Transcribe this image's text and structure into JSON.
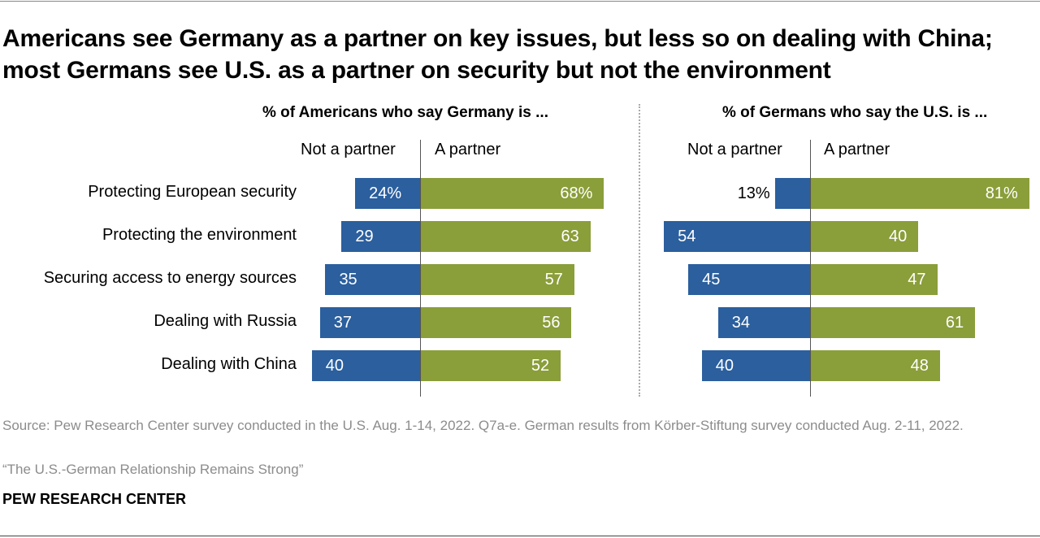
{
  "title": "Americans see Germany as a partner on key issues, but less so on dealing with China; most Germans see U.S. as a partner on security but not the environment",
  "colors": {
    "not_partner": "#2b5f9e",
    "partner": "#8a9e3a"
  },
  "chart_data": [
    {
      "type": "bar",
      "orientation": "horizontal-diverging",
      "title": "% of Americans who say Germany is ...",
      "categories": [
        "Protecting European security",
        "Protecting the environment",
        "Securing access to energy sources",
        "Dealing with Russia",
        "Dealing with China"
      ],
      "series": [
        {
          "name": "Not a partner",
          "values": [
            24,
            29,
            35,
            37,
            40
          ],
          "labels": [
            "24%",
            "29",
            "35",
            "37",
            "40"
          ]
        },
        {
          "name": "A partner",
          "values": [
            68,
            63,
            57,
            56,
            52
          ],
          "labels": [
            "68%",
            "63",
            "57",
            "56",
            "52"
          ]
        }
      ]
    },
    {
      "type": "bar",
      "orientation": "horizontal-diverging",
      "title": "% of Germans who say the U.S. is ...",
      "categories": [
        "Protecting European security",
        "Protecting the environment",
        "Securing access to energy sources",
        "Dealing with Russia",
        "Dealing with China"
      ],
      "series": [
        {
          "name": "Not a partner",
          "values": [
            13,
            54,
            45,
            34,
            40
          ],
          "labels": [
            "13%",
            "54",
            "45",
            "34",
            "40"
          ]
        },
        {
          "name": "A partner",
          "values": [
            81,
            40,
            47,
            61,
            48
          ],
          "labels": [
            "81%",
            "40",
            "47",
            "61",
            "48"
          ]
        }
      ]
    }
  ],
  "source": "Source: Pew Research Center survey conducted in the U.S. Aug. 1-14, 2022. Q7a-e. German results from Körber-Stiftung survey conducted Aug. 2-11, 2022.",
  "report": "“The U.S.-German Relationship Remains Strong”",
  "brand": "PEW RESEARCH CENTER"
}
